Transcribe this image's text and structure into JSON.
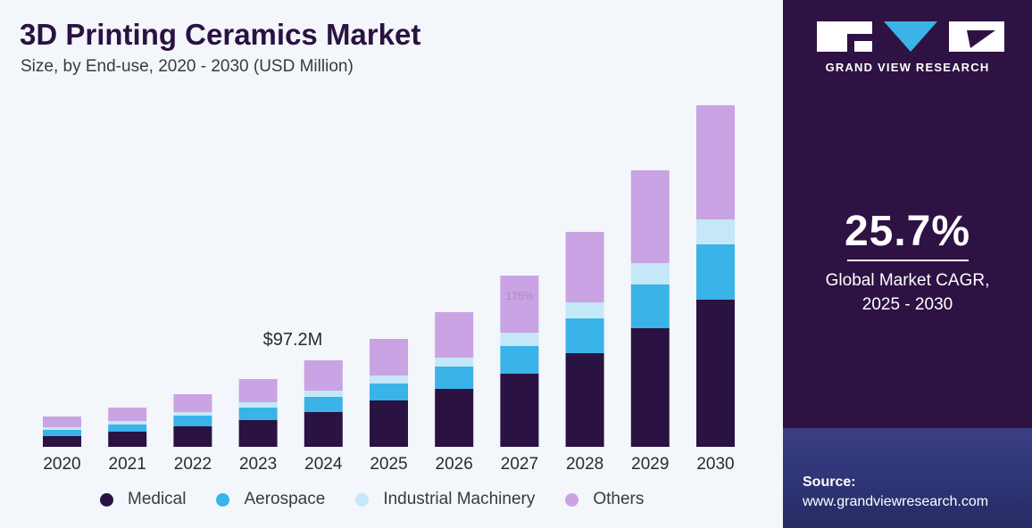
{
  "header": {
    "title": "3D Printing Ceramics Market",
    "subtitle": "Size, by End-use, 2020 - 2030 (USD Million)"
  },
  "chart_data": {
    "type": "bar",
    "stacked": true,
    "categories": [
      "2020",
      "2021",
      "2022",
      "2023",
      "2024",
      "2025",
      "2026",
      "2027",
      "2028",
      "2029",
      "2030"
    ],
    "series": [
      {
        "name": "Medical",
        "color": "#2a1242",
        "values": [
          12,
          17,
          23,
          30,
          39,
          52,
          65,
          82,
          105,
          133,
          165
        ]
      },
      {
        "name": "Aerospace",
        "color": "#3ab3e8",
        "values": [
          7,
          8,
          12,
          14,
          17,
          19,
          25,
          31,
          39,
          49,
          62
        ]
      },
      {
        "name": "Industrial Machinery",
        "color": "#c4e8f7",
        "values": [
          3,
          4,
          4,
          6,
          7,
          9,
          10,
          15,
          18,
          24,
          28
        ]
      },
      {
        "name": "Others",
        "color": "#c9a3e3",
        "values": [
          12,
          15,
          20,
          26,
          34,
          41,
          51,
          64,
          79,
          104,
          128
        ]
      }
    ],
    "annotations": [
      {
        "category": "2024",
        "text": "$97.2M"
      },
      {
        "category": "2027",
        "text": "175%"
      }
    ],
    "ylim": [
      0,
      390
    ],
    "grid": false,
    "legend_position": "bottom"
  },
  "sidebar": {
    "brand_text": "GRAND VIEW RESEARCH",
    "cagr_value": "25.7%",
    "cagr_label_line1": "Global Market CAGR,",
    "cagr_label_line2": "2025 - 2030",
    "source_label": "Source:",
    "source_url": "www.grandviewresearch.com"
  }
}
